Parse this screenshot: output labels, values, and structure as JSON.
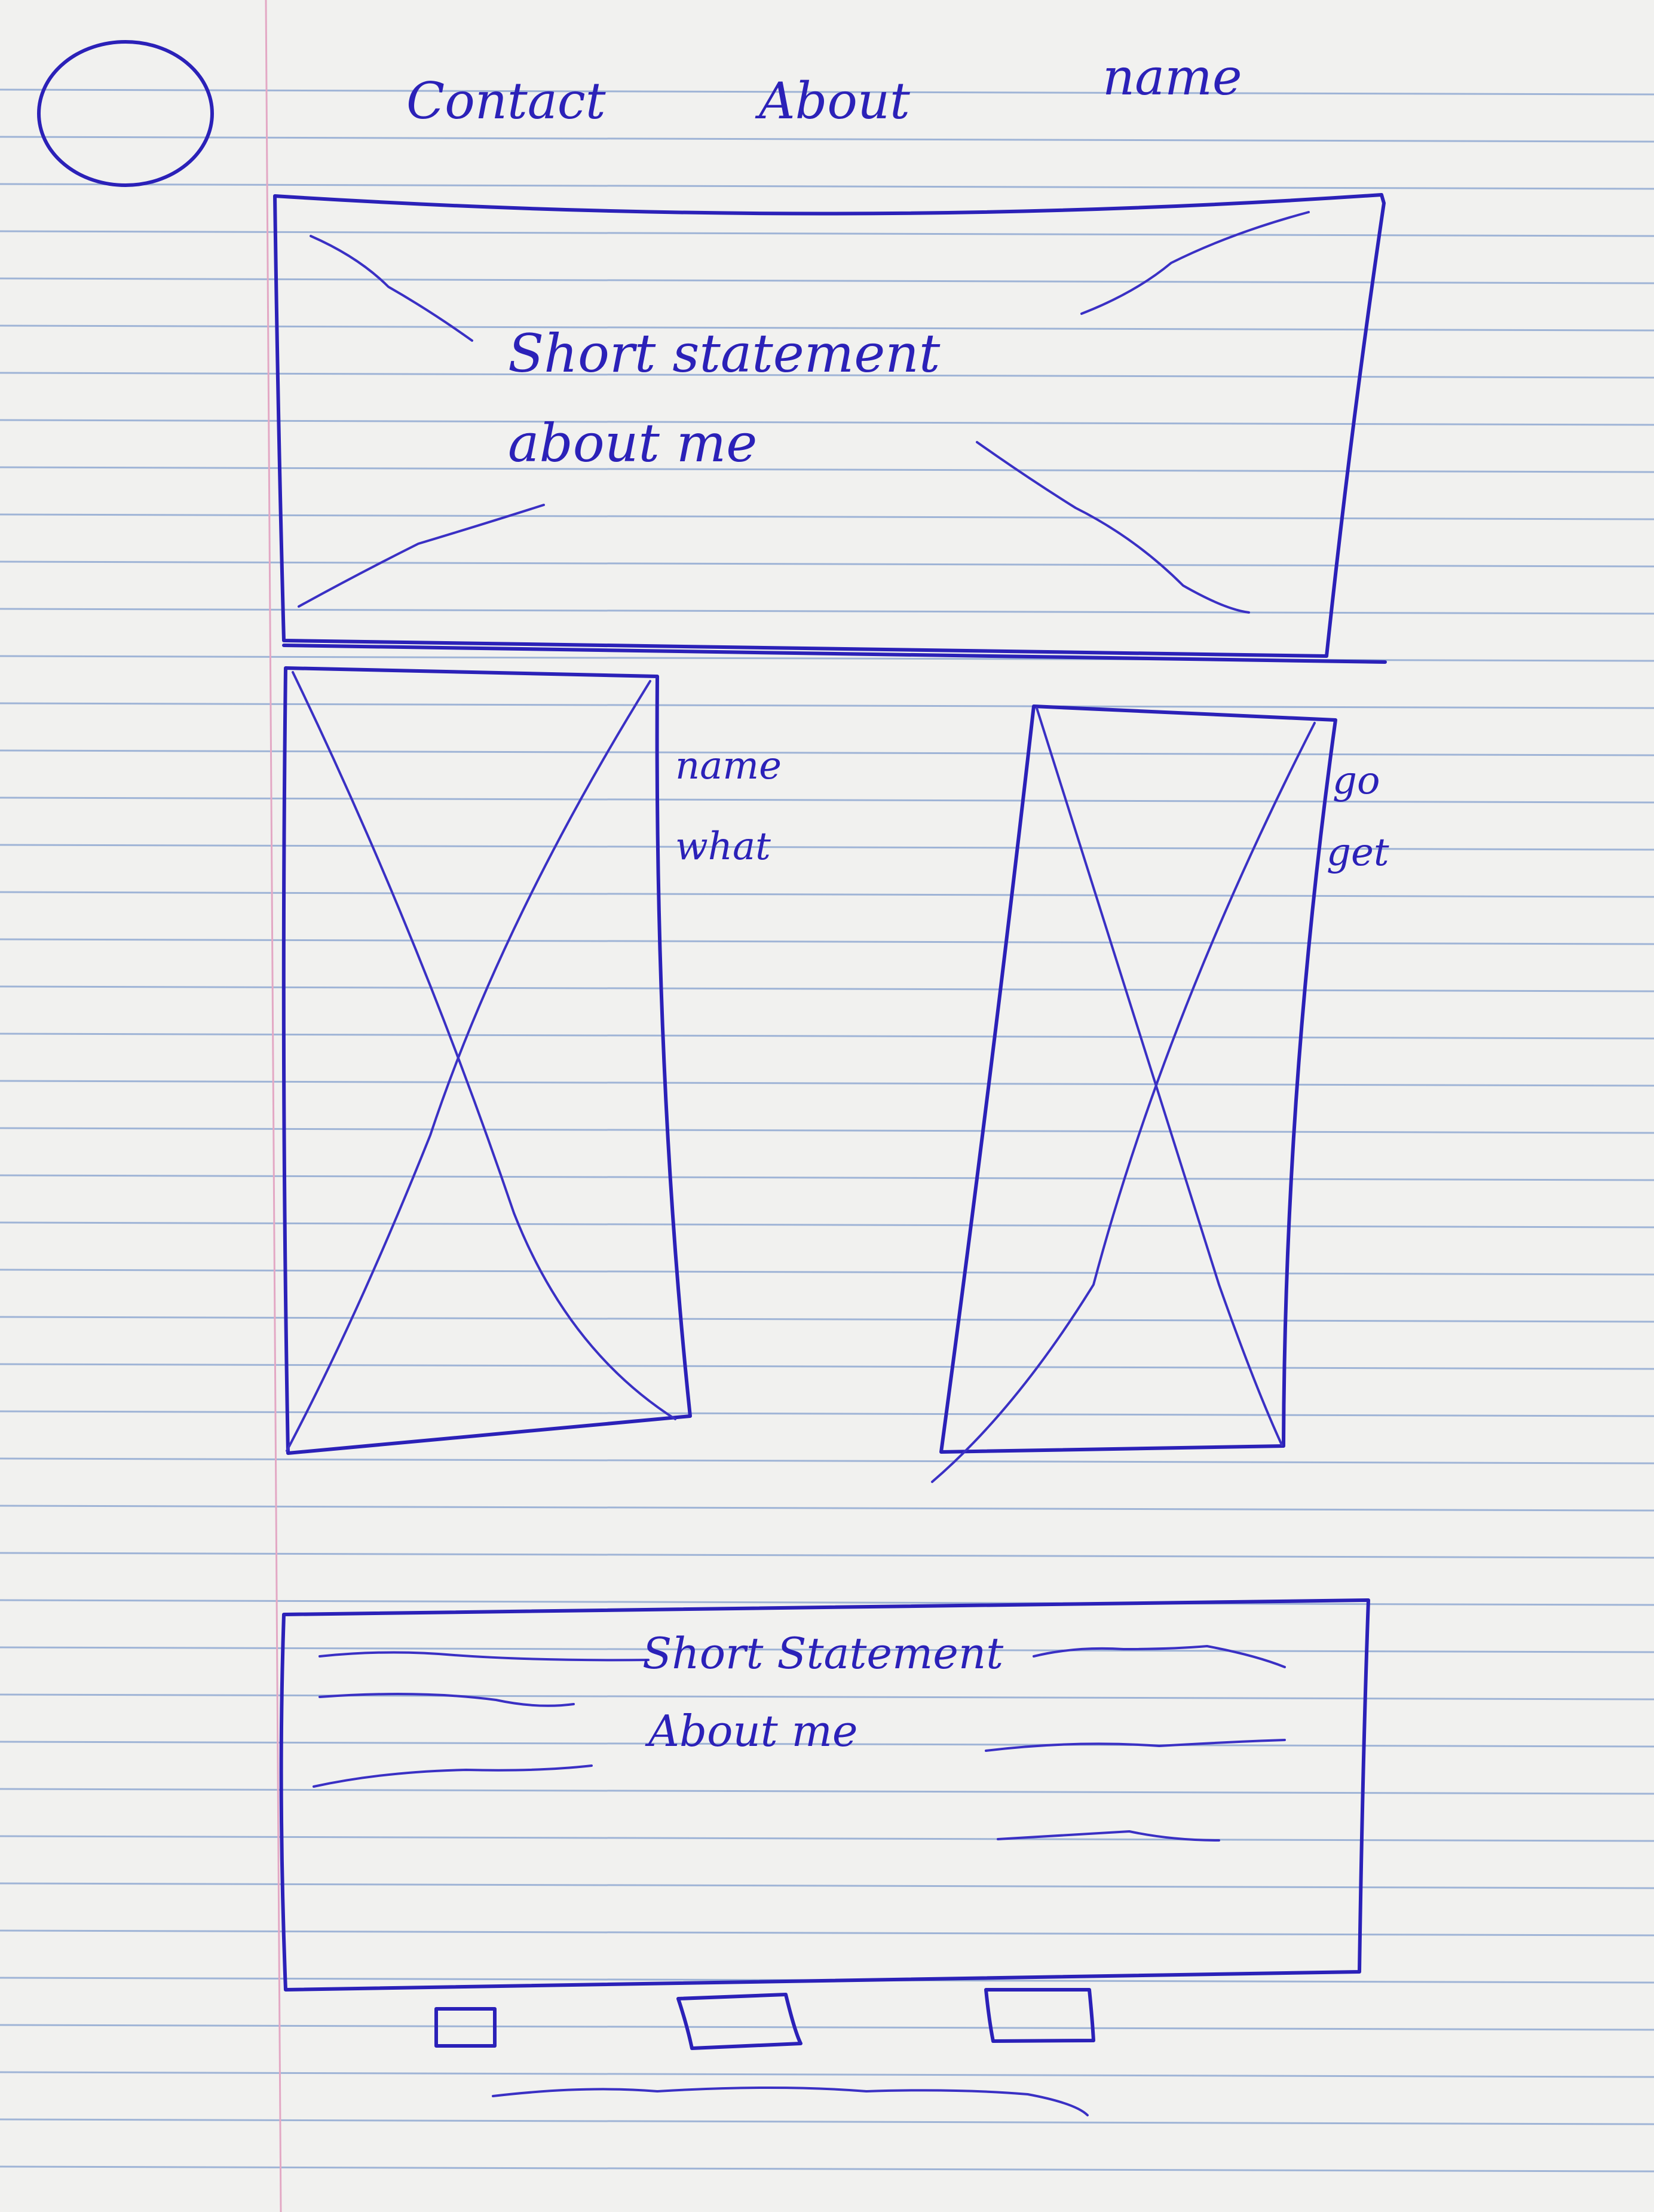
{
  "nav": {
    "logo": "logo-circle",
    "items": [
      "Contact",
      "About",
      "name"
    ]
  },
  "hero": {
    "line1": "Short statement",
    "line2": "about me"
  },
  "cards": [
    {
      "labels": [
        "name",
        "what"
      ]
    },
    {
      "labels": [
        "go",
        "get"
      ]
    }
  ],
  "about": {
    "line1": "Short Statement",
    "line2": "About me"
  },
  "footer": {
    "icons": [
      "social-icon",
      "social-icon",
      "social-icon"
    ]
  },
  "colors": {
    "ink": "#2b21b8",
    "paper": "#f1f1ef",
    "rule": "#9fb4d6",
    "margin": "#e3a8c4"
  }
}
